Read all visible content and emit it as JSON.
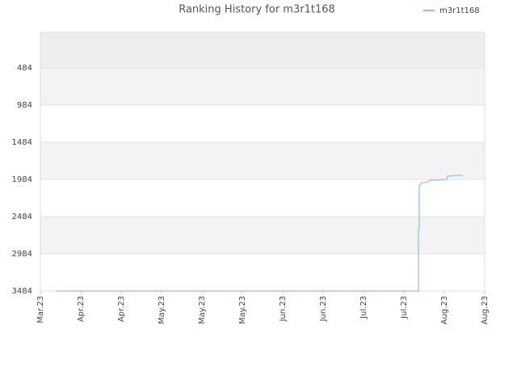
{
  "chart_data": {
    "type": "line",
    "title": "Ranking History for m3r1t168",
    "x": [
      0.4,
      9.36,
      9.36,
      9.38,
      9.38,
      9.4,
      9.44,
      9.6,
      9.64,
      9.92,
      9.94,
      10.06,
      10.08,
      10.3,
      10.46
    ],
    "series": [
      {
        "name": "m3r1t168",
        "color": "#90c0ee",
        "values": [
          3484,
          3484,
          2640,
          2640,
          2080,
          2060,
          2030,
          2016,
          1994,
          1994,
          1984,
          1984,
          1940,
          1930,
          1930
        ]
      }
    ],
    "xlim": [
      0,
      11
    ],
    "xticks": [
      {
        "value": 0,
        "label": "Mar.23"
      },
      {
        "value": 1,
        "label": "Apr.23"
      },
      {
        "value": 2,
        "label": "Apr.23"
      },
      {
        "value": 3,
        "label": "May.23"
      },
      {
        "value": 4,
        "label": "May.23"
      },
      {
        "value": 5,
        "label": "May.23"
      },
      {
        "value": 6,
        "label": "Jun.23"
      },
      {
        "value": 7,
        "label": "Jun.23"
      },
      {
        "value": 8,
        "label": "Jul.23"
      },
      {
        "value": 9,
        "label": "Jul.23"
      },
      {
        "value": 10,
        "label": "Aug.23"
      },
      {
        "value": 11,
        "label": "Aug.23"
      }
    ],
    "ylim": [
      6,
      3484
    ],
    "y_inverted": true,
    "yticks": [
      484,
      984,
      1484,
      1984,
      2484,
      2984,
      3484
    ],
    "grid": true,
    "legend": "top-right"
  }
}
